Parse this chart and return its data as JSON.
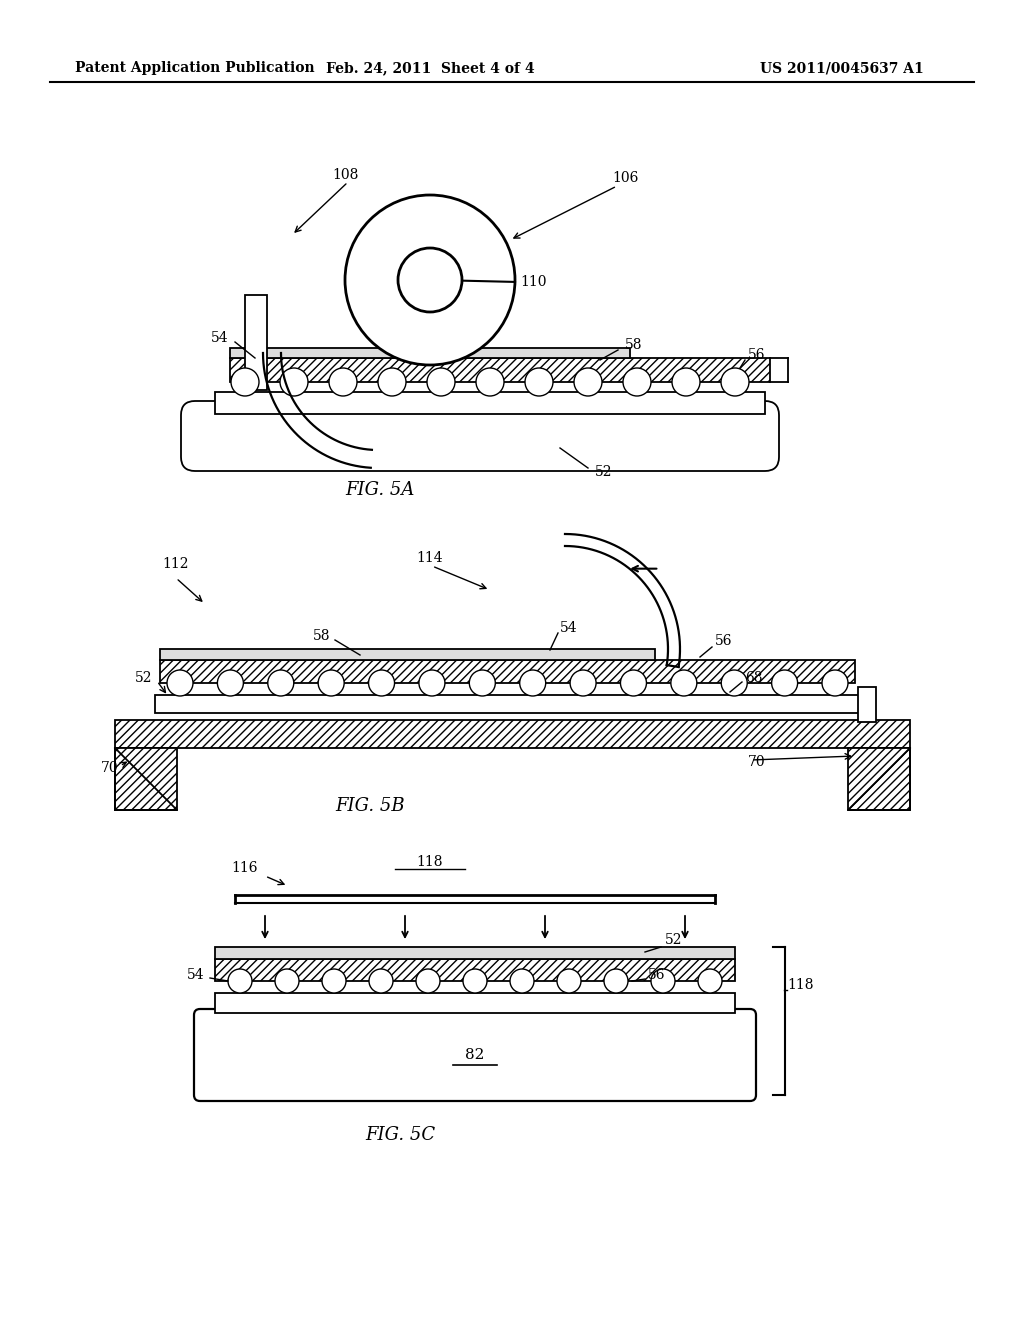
{
  "header_left": "Patent Application Publication",
  "header_middle": "Feb. 24, 2011  Sheet 4 of 4",
  "header_right": "US 2011/0045637 A1",
  "fig5a_label": "FIG. 5A",
  "fig5b_label": "FIG. 5B",
  "fig5c_label": "FIG. 5C",
  "bg_color": "#ffffff",
  "line_color": "#000000"
}
